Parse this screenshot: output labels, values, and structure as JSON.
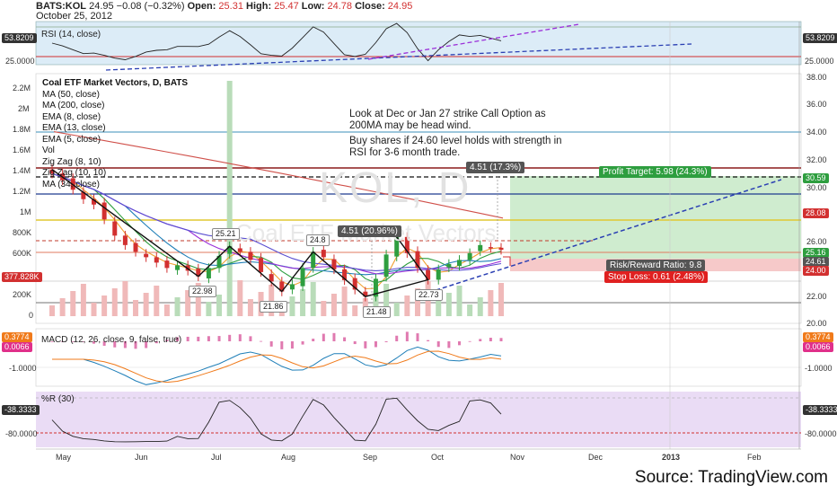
{
  "header": {
    "symbol": "BATS:KOL",
    "last": "24.95",
    "change": "−0.08 (−0.32%)",
    "open_label": "Open:",
    "open": "25.31",
    "high_label": "High:",
    "high": "25.47",
    "low_label": "Low:",
    "low": "24.78",
    "close_label": "Close:",
    "close": "24.95",
    "date": "October 25, 2012"
  },
  "watermark": "KOL, D",
  "watermark_sub": "Coal ETF Market Vectors",
  "source": "Source: TradingView.com",
  "rsi_panel": {
    "label": "RSI (14, close)",
    "value_left": "53.8209",
    "value_right": "53.8209",
    "level_left": "25.0000",
    "level_right": "25.0000"
  },
  "main_panel": {
    "title": "Coal ETF Market Vectors, D, BATS",
    "indicators": [
      "MA (50, close)",
      "MA (200, close)",
      "EMA (8, close)",
      "EMA (13, close)",
      "EMA (5, close)",
      "Vol",
      "Zig Zag (8, 10)",
      "Zig Zag (10, 10)",
      "MA (34, close)"
    ],
    "volume_ticks": [
      "2.2M",
      "2M",
      "1.8M",
      "1.6M",
      "1.4M",
      "1.2M",
      "1M",
      "800K",
      "600K",
      "400K",
      "200K",
      "0"
    ],
    "volume_value": "377.828K",
    "price_ticks": [
      "38.00",
      "36.00",
      "34.00",
      "32.00",
      "30.00",
      "28.00",
      "26.00",
      "24.00",
      "22.00",
      "20.00"
    ],
    "price_tags": [
      {
        "text": "30.59",
        "color": "#2e9e3f"
      },
      {
        "text": "28.08",
        "color": "#d23030"
      },
      {
        "text": "25.16",
        "color": "#2e9e3f"
      },
      {
        "text": "24.61",
        "color": "#555555"
      },
      {
        "text": "24.00",
        "color": "#d23030"
      }
    ],
    "note1": "Look at Dec or Jan 27 strike Call Option as 200MA may be head wind.",
    "note2": "Buy shares if 24.60 level holds with strength in RSI for 3-6 month trade.",
    "zigzag_labels": [
      "25.21",
      "22.98",
      "24.8",
      "21.86",
      "21.48",
      "22.73"
    ],
    "range_label_1": "4.51 (20.96%)",
    "range_label_2": "4.51 (17.3%)",
    "profit_target": "Profit Target: 5.98 (24.3%)",
    "risk_reward": "Risk/Reward Ratio: 9.8",
    "stop_loss": "Stop Loss: 0.61 (2.48%)"
  },
  "macd_panel": {
    "label": "MACD (12, 26, close, 9, false, true)",
    "value1": "0.3774",
    "value2": "0.0066",
    "tick": "-1.0000"
  },
  "wr_panel": {
    "label": "%R (30)",
    "value": "-38.3333",
    "tick": "-80.0000"
  },
  "x_axis": [
    "May",
    "Jun",
    "Jul",
    "Aug",
    "Sep",
    "Oct",
    "Nov",
    "Dec",
    "2013",
    "Feb"
  ],
  "colors": {
    "up": "#2e9e3f",
    "down": "#d23030",
    "rsi_bg": "#dcecf7",
    "wr_bg": "#eadcf5",
    "profit_zone": "#cfeccf",
    "loss_zone": "#f6c9c9",
    "trend": "#2a3fb3",
    "rsi_trend": "#9b30d9"
  },
  "chart_data": {
    "type": "candlestick",
    "title": "Coal ETF Market Vectors, D, BATS",
    "symbol": "KOL",
    "y_range": [
      19.5,
      38
    ],
    "x_categories": [
      "May",
      "Jun",
      "Jul",
      "Aug",
      "Sep",
      "Oct"
    ],
    "close_series": [
      30.6,
      30.1,
      29.4,
      28.7,
      28.3,
      27.2,
      26.0,
      25.3,
      24.8,
      24.4,
      24.0,
      23.6,
      23.8,
      23.4,
      22.98,
      23.6,
      24.5,
      25.21,
      24.8,
      24.2,
      23.3,
      22.6,
      21.86,
      22.4,
      23.6,
      24.8,
      24.4,
      23.5,
      22.7,
      22.0,
      21.48,
      22.8,
      24.6,
      25.9,
      24.7,
      23.6,
      22.73,
      23.5,
      23.9,
      24.2,
      24.7,
      25.3,
      25.1,
      24.95
    ],
    "zigzag_points": [
      {
        "label": "25.21",
        "value": 25.21
      },
      {
        "label": "22.98",
        "value": 22.98
      },
      {
        "label": "24.8",
        "value": 24.8
      },
      {
        "label": "21.86",
        "value": 21.86
      },
      {
        "label": "21.48",
        "value": 21.48
      },
      {
        "label": "22.73",
        "value": 22.73
      }
    ],
    "levels": {
      "profit_target": 30.59,
      "resistance": 28.08,
      "entry": 25.16,
      "last": 24.61,
      "stop": 24.0
    },
    "rsi": {
      "last": 53.8209,
      "level": 25
    },
    "williams_r": {
      "last": -38.3333,
      "level": -80
    },
    "macd": {
      "line": 0.3774,
      "signal": 0.0066
    }
  }
}
